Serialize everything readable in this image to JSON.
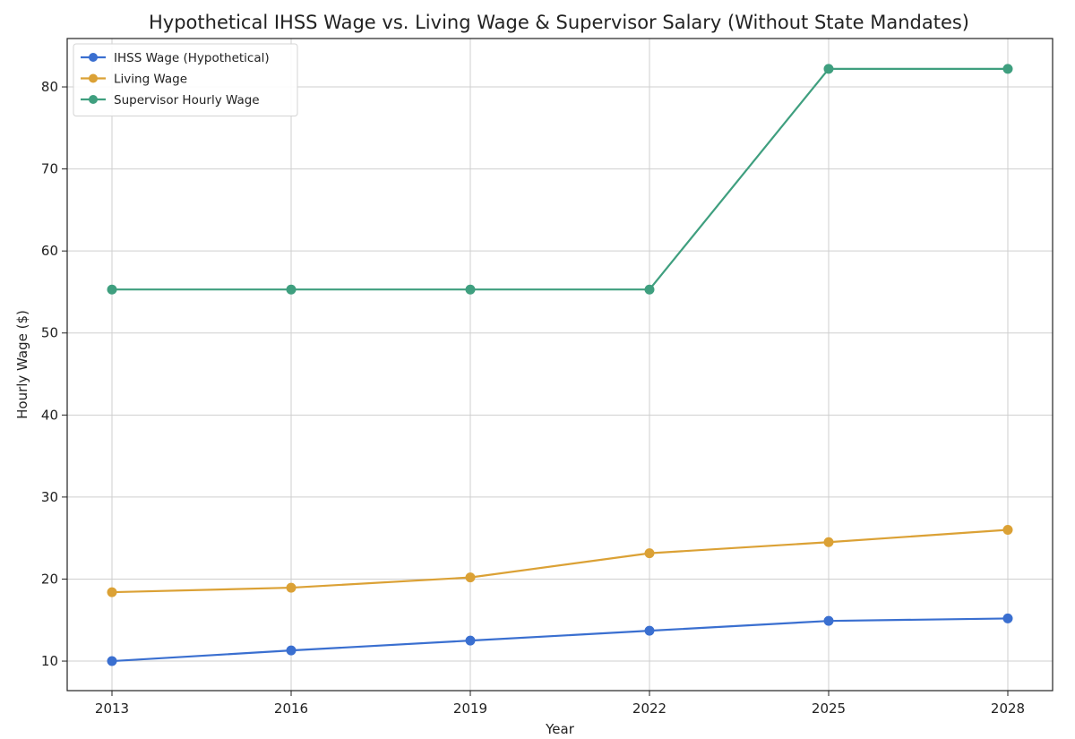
{
  "chart_data": {
    "type": "line",
    "title": "Hypothetical IHSS Wage vs. Living Wage & Supervisor Salary (Without State Mandates)",
    "xlabel": "Year",
    "ylabel": "Hourly Wage ($)",
    "x": [
      2013,
      2016,
      2019,
      2022,
      2025,
      2028
    ],
    "x_tick_labels": [
      "2013",
      "2016",
      "2019",
      "2022",
      "2025",
      "2028"
    ],
    "xlim": [
      2012.25,
      2028.75
    ],
    "ylim": [
      6.4,
      85.9
    ],
    "y_ticks": [
      10,
      20,
      30,
      40,
      50,
      60,
      70,
      80
    ],
    "y_tick_labels": [
      "10",
      "20",
      "30",
      "40",
      "50",
      "60",
      "70",
      "80"
    ],
    "grid": true,
    "legend_position": "top-left",
    "series": [
      {
        "name": "IHSS Wage (Hypothetical)",
        "color": "#3a6fd0",
        "marker": "circle",
        "values": [
          10.0,
          11.3,
          12.5,
          13.7,
          14.9,
          15.2
        ]
      },
      {
        "name": "Living Wage",
        "color": "#dba135",
        "marker": "circle",
        "values": [
          18.4,
          18.95,
          20.2,
          23.15,
          24.5,
          26.0
        ]
      },
      {
        "name": "Supervisor Hourly Wage",
        "color": "#3f9f7f",
        "marker": "circle",
        "values": [
          55.3,
          55.3,
          55.3,
          55.3,
          82.2,
          82.2
        ]
      }
    ]
  },
  "colors": {
    "grid": "#cfcfcf",
    "axes": "#222222",
    "background": "#ffffff"
  }
}
